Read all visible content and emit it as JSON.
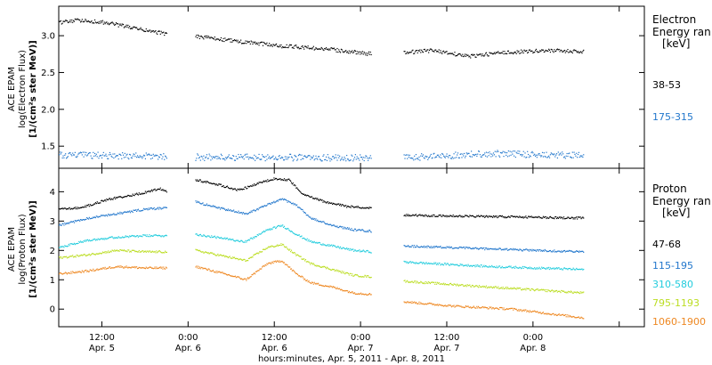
{
  "chart_data": [
    {
      "type": "scatter",
      "panel": "electron",
      "ylabel_lines": [
        "ACE EPAM",
        "log(Electron Flux)",
        "[1/(cm²s ster MeV)]"
      ],
      "ylim": [
        1.2,
        3.4
      ],
      "yticks": [
        1.5,
        2.0,
        2.5,
        3.0
      ],
      "ytick_labels": [
        "1.5",
        "2.0",
        "2.5",
        "3.0"
      ],
      "legend_title_lines": [
        "Electron",
        "Energy ran",
        "[keV]"
      ],
      "series": [
        {
          "name": "38-53",
          "color": "#000000",
          "segments": [
            {
              "x0": 0.0,
              "x1": 30.0,
              "y0": 3.18,
              "y1": 3.02,
              "bumps": [
                [
                  6,
                  3.21
                ],
                [
                  14,
                  3.17
                ],
                [
                  22,
                  3.09
                ]
              ]
            },
            {
              "x0": 38.0,
              "x1": 87.0,
              "y0": 2.99,
              "y1": 2.75,
              "bumps": [
                [
                  50,
                  2.92
                ],
                [
                  62,
                  2.86
                ],
                [
                  74,
                  2.82
                ]
              ]
            },
            {
              "x0": 96.0,
              "x1": 146.0,
              "y0": 2.77,
              "y1": 2.78,
              "bumps": [
                [
                  104,
                  2.8
                ],
                [
                  114,
                  2.72
                ],
                [
                  124,
                  2.77
                ],
                [
                  136,
                  2.8
                ]
              ]
            }
          ]
        },
        {
          "name": "175-315",
          "color": "#2277cc",
          "segments": [
            {
              "x0": 0.0,
              "x1": 30.0,
              "y0": 1.38,
              "y1": 1.36,
              "bumps": []
            },
            {
              "x0": 38.0,
              "x1": 87.0,
              "y0": 1.35,
              "y1": 1.34,
              "bumps": []
            },
            {
              "x0": 96.0,
              "x1": 146.0,
              "y0": 1.34,
              "y1": 1.37,
              "bumps": [
                [
                  120,
                  1.4
                ]
              ]
            }
          ]
        }
      ]
    },
    {
      "type": "scatter",
      "panel": "proton",
      "ylabel_lines": [
        "ACE EPAM",
        "log(Proton Flux)",
        "[1/(cm²s ster MeV)]"
      ],
      "xlabel": "hours:minutes, Apr.  5, 2011 - Apr.  8, 2011",
      "ylim": [
        -0.6,
        4.8
      ],
      "yticks": [
        0,
        1,
        2,
        3,
        4
      ],
      "ytick_labels": [
        "0",
        "1",
        "2",
        "3",
        "4"
      ],
      "xlim": [
        0,
        163
      ],
      "xticks": [
        {
          "x": 12,
          "labels": [
            "12:00",
            "Apr. 5"
          ]
        },
        {
          "x": 36,
          "labels": [
            "0:00",
            "Apr. 6"
          ]
        },
        {
          "x": 60,
          "labels": [
            "12:00",
            "Apr. 6"
          ]
        },
        {
          "x": 84,
          "labels": [
            "0:00",
            "Apr. 7"
          ]
        },
        {
          "x": 108,
          "labels": [
            "12:00",
            "Apr. 7"
          ]
        },
        {
          "x": 132,
          "labels": [
            "0:00",
            "Apr. 8"
          ]
        },
        {
          "x": 156,
          "labels": [
            " ",
            " "
          ]
        }
      ],
      "legend_title_lines": [
        "Proton",
        "Energy ran",
        "[keV]"
      ],
      "series": [
        {
          "name": "47-68",
          "color": "#000000",
          "segments": [
            {
              "x0": 0.0,
              "x1": 30.0,
              "y0": 3.4,
              "y1": 4.0,
              "bumps": [
                [
                  6,
                  3.45
                ],
                [
                  14,
                  3.75
                ],
                [
                  22,
                  3.92
                ],
                [
                  28,
                  4.1
                ]
              ]
            },
            {
              "x0": 38.0,
              "x1": 87.0,
              "y0": 4.4,
              "y1": 3.45,
              "bumps": [
                [
                  44,
                  4.25
                ],
                [
                  50,
                  4.05
                ],
                [
                  56,
                  4.3
                ],
                [
                  60,
                  4.45
                ],
                [
                  64,
                  4.4
                ],
                [
                  68,
                  3.9
                ],
                [
                  74,
                  3.65
                ],
                [
                  80,
                  3.5
                ]
              ]
            },
            {
              "x0": 96.0,
              "x1": 146.0,
              "y0": 3.2,
              "y1": 3.1,
              "bumps": []
            }
          ]
        },
        {
          "name": "115-195",
          "color": "#2277cc",
          "segments": [
            {
              "x0": 0.0,
              "x1": 30.0,
              "y0": 2.85,
              "y1": 3.45,
              "bumps": [
                [
                  8,
                  3.1
                ],
                [
                  16,
                  3.25
                ],
                [
                  24,
                  3.4
                ]
              ]
            },
            {
              "x0": 38.0,
              "x1": 87.0,
              "y0": 3.65,
              "y1": 2.65,
              "bumps": [
                [
                  46,
                  3.4
                ],
                [
                  52,
                  3.25
                ],
                [
                  58,
                  3.55
                ],
                [
                  62,
                  3.75
                ],
                [
                  66,
                  3.55
                ],
                [
                  70,
                  3.1
                ],
                [
                  76,
                  2.85
                ],
                [
                  82,
                  2.7
                ]
              ]
            },
            {
              "x0": 96.0,
              "x1": 146.0,
              "y0": 2.15,
              "y1": 1.95,
              "bumps": [
                [
                  120,
                  2.05
                ]
              ]
            }
          ]
        },
        {
          "name": "310-580",
          "color": "#22ccdd",
          "segments": [
            {
              "x0": 0.0,
              "x1": 30.0,
              "y0": 2.1,
              "y1": 2.5,
              "bumps": [
                [
                  8,
                  2.35
                ],
                [
                  16,
                  2.45
                ],
                [
                  24,
                  2.5
                ]
              ]
            },
            {
              "x0": 38.0,
              "x1": 87.0,
              "y0": 2.55,
              "y1": 1.95,
              "bumps": [
                [
                  46,
                  2.4
                ],
                [
                  52,
                  2.3
                ],
                [
                  58,
                  2.7
                ],
                [
                  62,
                  2.85
                ],
                [
                  66,
                  2.55
                ],
                [
                  70,
                  2.3
                ],
                [
                  76,
                  2.15
                ],
                [
                  82,
                  2.0
                ]
              ]
            },
            {
              "x0": 96.0,
              "x1": 146.0,
              "y0": 1.6,
              "y1": 1.35,
              "bumps": [
                [
                  120,
                  1.45
                ]
              ]
            }
          ]
        },
        {
          "name": "795-1193",
          "color": "#bbdd22",
          "segments": [
            {
              "x0": 0.0,
              "x1": 30.0,
              "y0": 1.75,
              "y1": 1.95,
              "bumps": [
                [
                  8,
                  1.85
                ],
                [
                  16,
                  2.0
                ],
                [
                  24,
                  1.95
                ]
              ]
            },
            {
              "x0": 38.0,
              "x1": 87.0,
              "y0": 2.0,
              "y1": 1.1,
              "bumps": [
                [
                  46,
                  1.8
                ],
                [
                  52,
                  1.65
                ],
                [
                  58,
                  2.1
                ],
                [
                  62,
                  2.2
                ],
                [
                  66,
                  1.85
                ],
                [
                  70,
                  1.55
                ],
                [
                  76,
                  1.35
                ],
                [
                  82,
                  1.15
                ]
              ]
            },
            {
              "x0": 96.0,
              "x1": 146.0,
              "y0": 0.95,
              "y1": 0.55,
              "bumps": [
                [
                  120,
                  0.75
                ]
              ]
            }
          ]
        },
        {
          "name": "1060-1900",
          "color": "#ee8822",
          "segments": [
            {
              "x0": 0.0,
              "x1": 30.0,
              "y0": 1.2,
              "y1": 1.4,
              "bumps": [
                [
                  8,
                  1.3
                ],
                [
                  16,
                  1.45
                ],
                [
                  24,
                  1.4
                ]
              ]
            },
            {
              "x0": 38.0,
              "x1": 87.0,
              "y0": 1.45,
              "y1": 0.5,
              "bumps": [
                [
                  46,
                  1.2
                ],
                [
                  52,
                  1.0
                ],
                [
                  58,
                  1.55
                ],
                [
                  62,
                  1.65
                ],
                [
                  66,
                  1.2
                ],
                [
                  70,
                  0.9
                ],
                [
                  76,
                  0.75
                ],
                [
                  82,
                  0.55
                ]
              ]
            },
            {
              "x0": 96.0,
              "x1": 146.0,
              "y0": 0.25,
              "y1": -0.3,
              "bumps": [
                [
                  110,
                  0.1
                ],
                [
                  126,
                  0.0
                ],
                [
                  136,
                  -0.15
                ]
              ]
            }
          ]
        }
      ]
    }
  ]
}
